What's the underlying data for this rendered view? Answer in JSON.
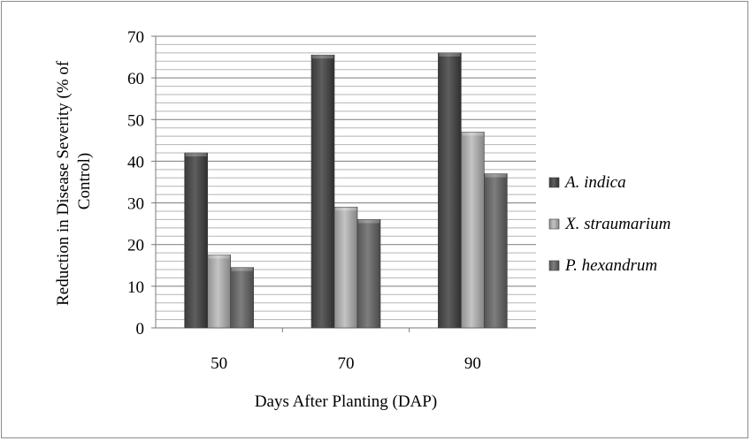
{
  "chart_data": {
    "type": "bar",
    "title": "",
    "xlabel": "Days After Planting (DAP)",
    "ylabel_line1": "Reduction in Disease Severity (% of",
    "ylabel_line2": "Control)",
    "categories": [
      "50",
      "70",
      "90"
    ],
    "ylim": [
      0,
      70
    ],
    "yticks": [
      0,
      10,
      20,
      30,
      40,
      50,
      60,
      70
    ],
    "grid": true,
    "legend_position": "right",
    "series": [
      {
        "name": "A. indica",
        "values": [
          42,
          65.5,
          66
        ],
        "color": "#4d4d4d"
      },
      {
        "name": "X. straumarium",
        "values": [
          17.5,
          29,
          47
        ],
        "color": "#a6a6a6"
      },
      {
        "name": "P. hexandrum",
        "values": [
          14.5,
          26,
          37
        ],
        "color": "#6b6b6b"
      }
    ]
  }
}
